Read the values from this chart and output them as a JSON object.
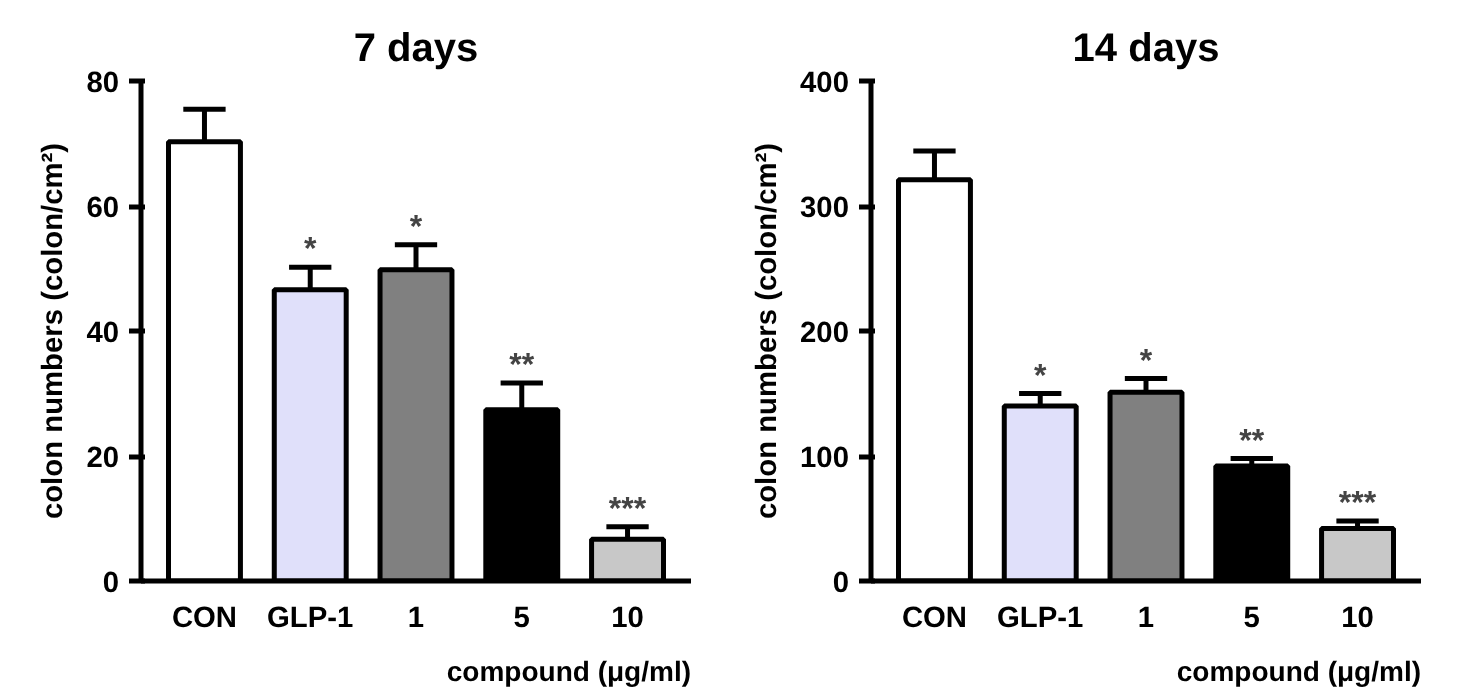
{
  "chart_data": [
    {
      "type": "bar",
      "title": "7 days",
      "ylabel": "colon numbers (colon/cm²)",
      "categories": [
        "CON",
        "GLP-1",
        "1",
        "5",
        "10"
      ],
      "values": [
        70.3,
        46.6,
        49.8,
        27.4,
        6.7
      ],
      "errors": [
        5.2,
        3.6,
        4,
        4.3,
        2
      ],
      "colors": [
        "#ffffff",
        "#e0e0fa",
        "#808080",
        "#000000",
        "#c8c8c8"
      ],
      "ylim": [
        0,
        80
      ],
      "yticks": [
        0,
        20,
        40,
        60,
        80
      ],
      "annotations": [
        {
          "text": "*",
          "x": "GLP-1",
          "y": 50.2
        },
        {
          "text": "*",
          "x": "1",
          "y": 53.8
        },
        {
          "text": "**",
          "x": "5",
          "y": 31.7
        },
        {
          "text": "***",
          "x": "10",
          "y": 8.7
        },
        "compound (μg/ml)"
      ]
    },
    {
      "type": "bar",
      "title": "14 days",
      "ylabel": "colon numbers (colon/cm²)",
      "categories": [
        "CON",
        "GLP-1",
        "1",
        "5",
        "10"
      ],
      "values": [
        321,
        140,
        151,
        92,
        42
      ],
      "errors": [
        23,
        10,
        11,
        6,
        6
      ],
      "colors": [
        "#ffffff",
        "#e0e0fa",
        "#808080",
        "#000000",
        "#c8c8c8"
      ],
      "ylim": [
        0,
        400
      ],
      "yticks": [
        0,
        100,
        200,
        300,
        400
      ],
      "annotations": [
        {
          "text": "*",
          "x": "GLP-1",
          "y": 150
        },
        {
          "text": "*",
          "x": "1",
          "y": 162
        },
        {
          "text": "**",
          "x": "5",
          "y": 98
        },
        {
          "text": "***",
          "x": "10",
          "y": 48
        },
        "compound (μg/ml)"
      ]
    }
  ]
}
